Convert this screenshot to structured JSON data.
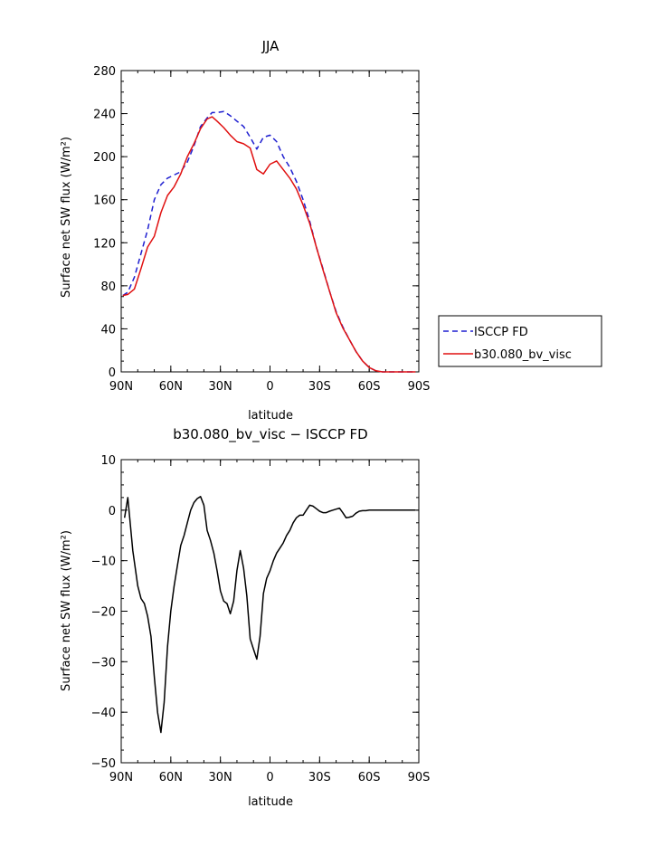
{
  "chart_data": [
    {
      "type": "line",
      "title": "JJA",
      "xlabel": "latitude",
      "ylabel": "Surface net SW flux (W/m²)",
      "xlim": [
        90,
        -90
      ],
      "ylim": [
        0,
        280
      ],
      "xticks": [
        90,
        60,
        30,
        0,
        -30,
        -60,
        -90
      ],
      "xtick_labels": [
        "90N",
        "60N",
        "30N",
        "0",
        "30S",
        "60S",
        "90S"
      ],
      "yticks": [
        0,
        40,
        80,
        120,
        160,
        200,
        240,
        280
      ],
      "legend_position": "right",
      "series": [
        {
          "name": "ISCCP FD",
          "color": "#1f1fd0",
          "dash": "dashed",
          "x": [
            89,
            86,
            82,
            78,
            74,
            70,
            66,
            62,
            58,
            54,
            50,
            46,
            42,
            38,
            35,
            32,
            28,
            24,
            20,
            16,
            12,
            8,
            4,
            0,
            -4,
            -8,
            -12,
            -16,
            -20,
            -24,
            -28,
            -32,
            -36,
            -40,
            -44,
            -48,
            -52,
            -56,
            -60,
            -64,
            -68,
            -72,
            -76,
            -80,
            -84,
            -88
          ],
          "values": [
            71,
            74,
            88,
            110,
            132,
            160,
            174,
            180,
            183,
            186,
            195,
            210,
            228,
            236,
            241,
            241,
            242,
            238,
            233,
            228,
            218,
            207,
            218,
            220,
            214,
            200,
            190,
            177,
            160,
            140,
            116,
            96,
            75,
            56,
            42,
            30,
            19,
            10,
            4,
            1,
            0,
            0,
            0,
            0,
            0,
            0
          ]
        },
        {
          "name": "b30.080_bv_visc",
          "color": "#e01010",
          "dash": "solid",
          "x": [
            89,
            86,
            82,
            78,
            74,
            70,
            66,
            62,
            58,
            54,
            50,
            46,
            42,
            38,
            35,
            32,
            28,
            24,
            20,
            16,
            12,
            8,
            4,
            0,
            -4,
            -8,
            -12,
            -16,
            -20,
            -24,
            -28,
            -32,
            -36,
            -40,
            -44,
            -48,
            -52,
            -56,
            -60,
            -64,
            -68,
            -72,
            -76,
            -80,
            -84,
            -88
          ],
          "values": [
            71,
            72,
            77,
            96,
            116,
            126,
            148,
            164,
            172,
            184,
            200,
            212,
            226,
            235,
            237,
            233,
            227,
            220,
            214,
            212,
            208,
            188,
            184,
            193,
            196,
            188,
            180,
            170,
            155,
            138,
            116,
            95,
            75,
            55,
            41,
            30,
            19,
            10,
            4,
            1,
            0,
            0,
            0,
            0,
            0,
            0
          ]
        }
      ]
    },
    {
      "type": "line",
      "title": "b30.080_bv_visc − ISCCP FD",
      "xlabel": "latitude",
      "ylabel": "Surface net SW flux (W/m²)",
      "xlim": [
        90,
        -90
      ],
      "ylim": [
        -50,
        10
      ],
      "xticks": [
        90,
        60,
        30,
        0,
        -30,
        -60,
        -90
      ],
      "xtick_labels": [
        "90N",
        "60N",
        "30N",
        "0",
        "30S",
        "60S",
        "90S"
      ],
      "yticks": [
        -50,
        -40,
        -30,
        -20,
        -10,
        0,
        10
      ],
      "series": [
        {
          "name": "b30.080_bv_visc − ISCCP FD",
          "color": "#000000",
          "dash": "solid",
          "x": [
            88,
            86,
            83,
            80,
            78,
            76,
            74,
            72,
            70,
            68,
            66,
            64,
            62,
            60,
            58,
            56,
            54,
            52,
            50,
            48,
            46,
            44,
            42,
            40,
            38,
            36,
            34,
            32,
            30,
            28,
            26,
            24,
            22,
            20,
            18,
            16,
            14,
            12,
            10,
            8,
            6,
            4,
            2,
            0,
            -2,
            -4,
            -6,
            -8,
            -10,
            -12,
            -14,
            -16,
            -18,
            -20,
            -22,
            -24,
            -26,
            -28,
            -30,
            -32,
            -34,
            -36,
            -38,
            -40,
            -42,
            -44,
            -46,
            -48,
            -50,
            -52,
            -54,
            -56,
            -58,
            -60,
            -62,
            -64,
            -66,
            -68,
            -70,
            -75,
            -80,
            -85,
            -88
          ],
          "values": [
            -1.5,
            2.5,
            -8,
            -15,
            -17.5,
            -18.5,
            -21,
            -25,
            -33,
            -40,
            -44,
            -38,
            -27,
            -20,
            -15,
            -11,
            -7,
            -5,
            -2.5,
            0,
            1.5,
            2.3,
            2.7,
            1,
            -4,
            -6,
            -8.5,
            -12,
            -16,
            -18,
            -18.5,
            -20.5,
            -18,
            -12,
            -8,
            -11.5,
            -17,
            -25.5,
            -27.5,
            -29.5,
            -25,
            -16.5,
            -13.5,
            -12,
            -10,
            -8.5,
            -7.5,
            -6.5,
            -5,
            -4,
            -2.5,
            -1.5,
            -1,
            -1,
            0,
            1,
            0.8,
            0.3,
            -0.2,
            -0.5,
            -0.5,
            -0.2,
            0,
            0.2,
            0.4,
            -0.5,
            -1.5,
            -1.4,
            -1.2,
            -0.6,
            -0.2,
            -0.1,
            -0.1,
            0,
            0,
            0,
            0,
            0,
            0,
            0,
            0,
            0,
            0
          ]
        }
      ]
    }
  ]
}
